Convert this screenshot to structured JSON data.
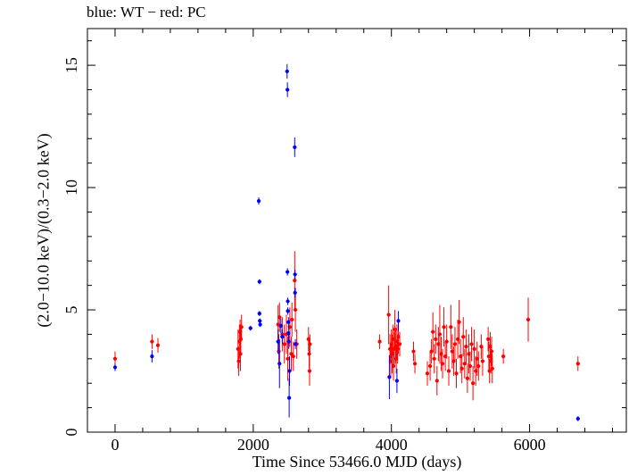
{
  "chart_data": {
    "type": "scatter",
    "title": "blue: WT − red: PC",
    "xlabel": "Time Since 53466.0 MJD (days)",
    "ylabel": "(2.0−10.0 keV)/(0.3−2.0 keV)",
    "xlim": [
      -400,
      7400
    ],
    "ylim": [
      0,
      16.5
    ],
    "xticks": [
      0,
      2000,
      4000,
      6000
    ],
    "xtick_labels": [
      "0",
      "2000",
      "4000",
      "6000"
    ],
    "yticks": [
      0,
      5,
      10,
      15
    ],
    "ytick_labels": [
      "0",
      "5",
      "10",
      "15"
    ],
    "grid": false,
    "colors": {
      "WT": "#0000ff",
      "PC": "#ff0000"
    },
    "series": [
      {
        "name": "WT",
        "points": [
          [
            0,
            2.65,
            0.15
          ],
          [
            535,
            3.1,
            0.25
          ],
          [
            1960,
            4.25,
            0.1
          ],
          [
            2080,
            9.45,
            0.15
          ],
          [
            2090,
            6.15,
            0.1
          ],
          [
            2090,
            4.85,
            0.1
          ],
          [
            2095,
            4.55,
            0.1
          ],
          [
            2100,
            4.4,
            0.1
          ],
          [
            2360,
            3.7,
            0.5
          ],
          [
            2380,
            2.8,
            1.0
          ],
          [
            2400,
            4.35,
            0.3
          ],
          [
            2420,
            3.9,
            0.3
          ],
          [
            2490,
            14.75,
            0.3
          ],
          [
            2495,
            14.0,
            0.3
          ],
          [
            2495,
            6.55,
            0.15
          ],
          [
            2500,
            5.35,
            0.15
          ],
          [
            2500,
            4.95,
            0.15
          ],
          [
            2510,
            4.5,
            0.2
          ],
          [
            2510,
            4.05,
            0.3
          ],
          [
            2515,
            3.7,
            0.3
          ],
          [
            2520,
            1.4,
            0.8
          ],
          [
            2525,
            2.5,
            0.6
          ],
          [
            2600,
            11.65,
            0.4
          ],
          [
            2605,
            6.45,
            0.2
          ],
          [
            2605,
            5.7,
            0.2
          ],
          [
            2610,
            3.6,
            0.2
          ],
          [
            3970,
            2.25,
            0.9
          ],
          [
            4080,
            2.1,
            0.5
          ],
          [
            4100,
            4.55,
            0.4
          ],
          [
            6700,
            0.55,
            0.1
          ]
        ]
      },
      {
        "name": "PC",
        "points": [
          [
            0,
            3.0,
            0.3
          ],
          [
            535,
            3.7,
            0.3
          ],
          [
            620,
            3.55,
            0.3
          ],
          [
            1780,
            3.4,
            0.8
          ],
          [
            1790,
            2.9,
            0.6
          ],
          [
            1800,
            3.7,
            0.7
          ],
          [
            1810,
            4.1,
            0.5
          ],
          [
            1815,
            3.2,
            0.7
          ],
          [
            1820,
            3.8,
            0.6
          ],
          [
            1830,
            4.3,
            0.5
          ],
          [
            2360,
            4.4,
            0.8
          ],
          [
            2370,
            3.3,
            0.7
          ],
          [
            2380,
            4.7,
            0.6
          ],
          [
            2420,
            4.0,
            0.7
          ],
          [
            2450,
            3.6,
            0.8
          ],
          [
            2480,
            4.0,
            0.8
          ],
          [
            2500,
            3.0,
            0.9
          ],
          [
            2530,
            4.3,
            0.8
          ],
          [
            2550,
            3.2,
            0.7
          ],
          [
            2560,
            4.6,
            0.7
          ],
          [
            2580,
            3.1,
            0.6
          ],
          [
            2600,
            6.2,
            1.2
          ],
          [
            2610,
            5.0,
            0.9
          ],
          [
            2630,
            3.6,
            0.6
          ],
          [
            2800,
            3.8,
            0.5
          ],
          [
            2810,
            3.2,
            0.6
          ],
          [
            2815,
            2.5,
            0.6
          ],
          [
            2820,
            3.6,
            0.4
          ],
          [
            3830,
            3.7,
            0.3
          ],
          [
            3960,
            4.8,
            1.2
          ],
          [
            3980,
            3.4,
            0.6
          ],
          [
            3990,
            2.9,
            0.7
          ],
          [
            4000,
            3.6,
            0.6
          ],
          [
            4010,
            3.2,
            0.8
          ],
          [
            4020,
            3.8,
            0.6
          ],
          [
            4030,
            2.7,
            0.6
          ],
          [
            4040,
            3.4,
            0.7
          ],
          [
            4050,
            4.2,
            0.8
          ],
          [
            4060,
            3.5,
            0.7
          ],
          [
            4070,
            3.0,
            0.6
          ],
          [
            4080,
            3.7,
            0.7
          ],
          [
            4090,
            3.4,
            0.6
          ],
          [
            4100,
            3.9,
            0.7
          ],
          [
            4120,
            3.6,
            0.5
          ],
          [
            4320,
            3.3,
            0.4
          ],
          [
            4340,
            2.8,
            0.4
          ],
          [
            4520,
            2.4,
            0.5
          ],
          [
            4560,
            2.7,
            0.6
          ],
          [
            4580,
            3.3,
            0.5
          ],
          [
            4600,
            4.1,
            0.8
          ],
          [
            4620,
            3.0,
            0.6
          ],
          [
            4640,
            3.8,
            0.6
          ],
          [
            4660,
            2.1,
            0.6
          ],
          [
            4680,
            3.6,
            0.7
          ],
          [
            4700,
            4.0,
            1.2
          ],
          [
            4720,
            3.2,
            0.7
          ],
          [
            4740,
            2.8,
            0.6
          ],
          [
            4760,
            4.3,
            0.8
          ],
          [
            4780,
            3.1,
            0.6
          ],
          [
            4800,
            3.7,
            0.7
          ],
          [
            4830,
            2.5,
            0.6
          ],
          [
            4860,
            4.3,
            0.9
          ],
          [
            4880,
            3.3,
            0.7
          ],
          [
            4900,
            2.9,
            0.6
          ],
          [
            4920,
            3.6,
            0.7
          ],
          [
            4940,
            2.4,
            0.6
          ],
          [
            4960,
            3.8,
            0.8
          ],
          [
            4980,
            4.5,
            0.9
          ],
          [
            5000,
            3.1,
            0.7
          ],
          [
            5020,
            2.6,
            0.6
          ],
          [
            5040,
            3.9,
            0.8
          ],
          [
            5060,
            2.8,
            0.6
          ],
          [
            5080,
            3.5,
            0.7
          ],
          [
            5100,
            2.2,
            0.6
          ],
          [
            5120,
            3.2,
            0.8
          ],
          [
            5140,
            2.7,
            0.6
          ],
          [
            5160,
            3.6,
            0.7
          ],
          [
            5180,
            2.0,
            0.7
          ],
          [
            5200,
            3.4,
            0.8
          ],
          [
            5220,
            2.5,
            0.6
          ],
          [
            5240,
            3.0,
            0.7
          ],
          [
            5260,
            2.7,
            0.6
          ],
          [
            5300,
            3.5,
            0.5
          ],
          [
            5320,
            2.9,
            0.6
          ],
          [
            5400,
            3.8,
            0.5
          ],
          [
            5410,
            3.1,
            0.6
          ],
          [
            5420,
            2.5,
            0.5
          ],
          [
            5430,
            3.5,
            0.6
          ],
          [
            5440,
            2.9,
            0.5
          ],
          [
            5450,
            3.3,
            0.6
          ],
          [
            5460,
            2.6,
            0.6
          ],
          [
            5620,
            3.1,
            0.3
          ],
          [
            5980,
            4.6,
            0.9
          ],
          [
            6700,
            2.8,
            0.3
          ]
        ]
      }
    ]
  }
}
